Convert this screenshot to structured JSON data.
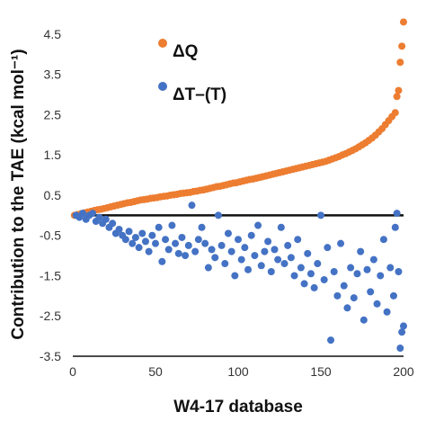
{
  "chart_data": {
    "type": "scatter",
    "title": "",
    "xlabel": "W4-17 database",
    "ylabel": "Contribution to the TAE (kcal mol⁻¹)",
    "xlim": [
      0,
      200
    ],
    "ylim": [
      -3.5,
      4.9
    ],
    "x_ticks": [
      "0",
      "50",
      "100",
      "150",
      "200"
    ],
    "x_tick_values": [
      0,
      50,
      100,
      150,
      200
    ],
    "y_ticks": [
      "4.5",
      "3.5",
      "2.5",
      "1.5",
      "0.5",
      "-0.5",
      "-1.5",
      "-2.5",
      "-3.5"
    ],
    "y_tick_values": [
      4.5,
      3.5,
      2.5,
      1.5,
      0.5,
      -0.5,
      -1.5,
      -2.5,
      -3.5
    ],
    "grid": false,
    "zero_line": true,
    "legend": "upper-left",
    "series": [
      {
        "name": "ΔQ",
        "color": "#ED7D31",
        "points": [
          [
            1,
            0.0
          ],
          [
            3,
            0.02
          ],
          [
            5,
            0.04
          ],
          [
            7,
            0.06
          ],
          [
            9,
            0.08
          ],
          [
            11,
            0.1
          ],
          [
            13,
            0.12
          ],
          [
            15,
            0.14
          ],
          [
            17,
            0.15
          ],
          [
            19,
            0.17
          ],
          [
            21,
            0.19
          ],
          [
            23,
            0.21
          ],
          [
            25,
            0.23
          ],
          [
            27,
            0.25
          ],
          [
            29,
            0.27
          ],
          [
            31,
            0.29
          ],
          [
            33,
            0.31
          ],
          [
            35,
            0.32
          ],
          [
            37,
            0.34
          ],
          [
            39,
            0.36
          ],
          [
            41,
            0.38
          ],
          [
            43,
            0.39
          ],
          [
            45,
            0.4
          ],
          [
            47,
            0.42
          ],
          [
            49,
            0.43
          ],
          [
            51,
            0.44
          ],
          [
            53,
            0.46
          ],
          [
            55,
            0.47
          ],
          [
            57,
            0.48
          ],
          [
            59,
            0.5
          ],
          [
            61,
            0.51
          ],
          [
            63,
            0.52
          ],
          [
            65,
            0.54
          ],
          [
            67,
            0.55
          ],
          [
            69,
            0.56
          ],
          [
            71,
            0.57
          ],
          [
            73,
            0.59
          ],
          [
            75,
            0.6
          ],
          [
            77,
            0.62
          ],
          [
            79,
            0.63
          ],
          [
            81,
            0.65
          ],
          [
            83,
            0.67
          ],
          [
            85,
            0.69
          ],
          [
            87,
            0.71
          ],
          [
            89,
            0.72
          ],
          [
            91,
            0.74
          ],
          [
            93,
            0.76
          ],
          [
            95,
            0.78
          ],
          [
            97,
            0.8
          ],
          [
            99,
            0.81
          ],
          [
            101,
            0.83
          ],
          [
            103,
            0.85
          ],
          [
            105,
            0.87
          ],
          [
            107,
            0.89
          ],
          [
            109,
            0.9
          ],
          [
            111,
            0.92
          ],
          [
            113,
            0.94
          ],
          [
            115,
            0.96
          ],
          [
            117,
            0.98
          ],
          [
            119,
            1.0
          ],
          [
            121,
            1.02
          ],
          [
            123,
            1.04
          ],
          [
            125,
            1.06
          ],
          [
            127,
            1.08
          ],
          [
            129,
            1.1
          ],
          [
            131,
            1.12
          ],
          [
            133,
            1.14
          ],
          [
            135,
            1.16
          ],
          [
            137,
            1.18
          ],
          [
            139,
            1.2
          ],
          [
            141,
            1.22
          ],
          [
            143,
            1.24
          ],
          [
            145,
            1.26
          ],
          [
            147,
            1.28
          ],
          [
            149,
            1.3
          ],
          [
            151,
            1.32
          ],
          [
            153,
            1.34
          ],
          [
            155,
            1.37
          ],
          [
            157,
            1.4
          ],
          [
            159,
            1.43
          ],
          [
            161,
            1.46
          ],
          [
            163,
            1.5
          ],
          [
            165,
            1.53
          ],
          [
            167,
            1.57
          ],
          [
            169,
            1.61
          ],
          [
            171,
            1.65
          ],
          [
            173,
            1.7
          ],
          [
            175,
            1.75
          ],
          [
            177,
            1.8
          ],
          [
            179,
            1.86
          ],
          [
            181,
            1.92
          ],
          [
            183,
            1.99
          ],
          [
            185,
            2.07
          ],
          [
            187,
            2.15
          ],
          [
            189,
            2.25
          ],
          [
            191,
            2.35
          ],
          [
            193,
            2.45
          ],
          [
            195,
            2.55
          ],
          [
            196,
            2.95
          ],
          [
            197,
            3.1
          ],
          [
            198,
            3.8
          ],
          [
            199,
            4.2
          ],
          [
            200,
            4.8
          ]
        ]
      },
      {
        "name": "ΔT–(T)",
        "color": "#4472C4",
        "points": [
          [
            2,
            0.0
          ],
          [
            4,
            -0.05
          ],
          [
            6,
            0.05
          ],
          [
            8,
            -0.1
          ],
          [
            10,
            0.0
          ],
          [
            12,
            0.05
          ],
          [
            14,
            -0.15
          ],
          [
            16,
            -0.05
          ],
          [
            18,
            -0.2
          ],
          [
            20,
            -0.1
          ],
          [
            22,
            -0.3
          ],
          [
            24,
            -0.2
          ],
          [
            26,
            -0.45
          ],
          [
            28,
            -0.35
          ],
          [
            30,
            -0.5
          ],
          [
            32,
            -0.6
          ],
          [
            34,
            -0.4
          ],
          [
            36,
            -0.7
          ],
          [
            38,
            -0.55
          ],
          [
            40,
            -0.8
          ],
          [
            42,
            -0.45
          ],
          [
            44,
            -0.65
          ],
          [
            46,
            -0.9
          ],
          [
            48,
            -0.5
          ],
          [
            50,
            -0.7
          ],
          [
            52,
            -0.3
          ],
          [
            54,
            -1.15
          ],
          [
            56,
            -0.6
          ],
          [
            58,
            -0.85
          ],
          [
            60,
            -0.25
          ],
          [
            62,
            -0.7
          ],
          [
            64,
            -0.95
          ],
          [
            66,
            -0.55
          ],
          [
            68,
            -1.0
          ],
          [
            70,
            -0.75
          ],
          [
            72,
            0.25
          ],
          [
            74,
            -0.9
          ],
          [
            76,
            -0.6
          ],
          [
            78,
            -0.3
          ],
          [
            80,
            -0.7
          ],
          [
            82,
            -1.3
          ],
          [
            84,
            -0.85
          ],
          [
            86,
            -1.05
          ],
          [
            88,
            0.0
          ],
          [
            90,
            -0.75
          ],
          [
            92,
            -1.2
          ],
          [
            94,
            -0.45
          ],
          [
            96,
            -0.9
          ],
          [
            98,
            -1.5
          ],
          [
            100,
            -0.6
          ],
          [
            102,
            -1.1
          ],
          [
            104,
            -0.8
          ],
          [
            106,
            -1.35
          ],
          [
            108,
            -0.5
          ],
          [
            110,
            -1.0
          ],
          [
            112,
            -0.25
          ],
          [
            114,
            -1.25
          ],
          [
            116,
            -0.9
          ],
          [
            118,
            -0.65
          ],
          [
            120,
            -1.4
          ],
          [
            122,
            -0.85
          ],
          [
            124,
            -1.1
          ],
          [
            126,
            -0.3
          ],
          [
            128,
            -1.2
          ],
          [
            130,
            -0.75
          ],
          [
            132,
            -1.05
          ],
          [
            134,
            -1.5
          ],
          [
            136,
            -0.6
          ],
          [
            138,
            -1.3
          ],
          [
            140,
            -1.7
          ],
          [
            142,
            -0.95
          ],
          [
            144,
            -1.45
          ],
          [
            146,
            -1.8
          ],
          [
            148,
            -1.2
          ],
          [
            150,
            0.0
          ],
          [
            152,
            -1.6
          ],
          [
            154,
            -0.8
          ],
          [
            156,
            -3.1
          ],
          [
            158,
            -1.4
          ],
          [
            160,
            -2.0
          ],
          [
            162,
            -0.7
          ],
          [
            164,
            -1.75
          ],
          [
            166,
            -2.3
          ],
          [
            168,
            -1.3
          ],
          [
            170,
            -2.05
          ],
          [
            172,
            -1.45
          ],
          [
            174,
            -0.9
          ],
          [
            176,
            -2.6
          ],
          [
            178,
            -1.35
          ],
          [
            180,
            -1.9
          ],
          [
            182,
            -1.1
          ],
          [
            184,
            -2.2
          ],
          [
            186,
            -1.5
          ],
          [
            188,
            -0.6
          ],
          [
            190,
            -2.4
          ],
          [
            192,
            -1.3
          ],
          [
            194,
            -2.0
          ],
          [
            195,
            -0.3
          ],
          [
            196,
            0.05
          ],
          [
            197,
            -1.4
          ],
          [
            198,
            -3.3
          ],
          [
            199,
            -2.9
          ],
          [
            200,
            -2.75
          ]
        ]
      }
    ]
  }
}
